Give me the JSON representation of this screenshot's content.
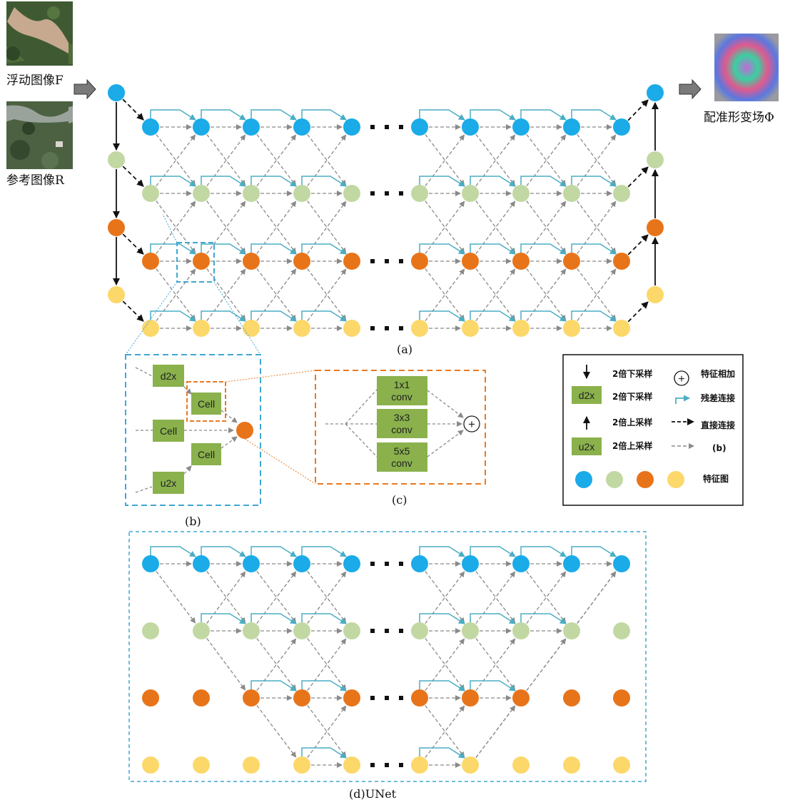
{
  "inputs": {
    "floating_label": "浮动图像F",
    "reference_label": "参考图像R",
    "output_label": "配准形变场Φ"
  },
  "captions": {
    "a": "(a)",
    "b": "(b)",
    "c": "(c)",
    "d": "(d)UNet"
  },
  "panel_b": {
    "d2x": "d2x",
    "u2x": "u2x",
    "cell": "Cell"
  },
  "panel_c": {
    "op1_line1": "1x1",
    "op1_line2": "conv",
    "op2_line1": "3x3",
    "op2_line2": "conv",
    "op3_line1": "5x5",
    "op3_line2": "conv",
    "plus": "+"
  },
  "legend": {
    "down_arrow_text": "2倍下采样",
    "d2x_box": "d2x",
    "d2x_text": "2倍下采样",
    "up_arrow_text": "2倍上采样",
    "u2x_box": "u2x",
    "u2x_text": "2倍上采样",
    "plus_symbol": "+",
    "plus_text": "特征相加",
    "residual_text": "残差连接",
    "direct_text": "直接连接",
    "gray_text": "(b)",
    "feature_text": "特征图"
  },
  "colors": {
    "level1": "#1aabe8",
    "level2": "#c2d8a3",
    "level3": "#e8741a",
    "level4": "#fcd86a",
    "residual": "#4aaec3",
    "box_green": "#8ab14c",
    "panel_blue": "#3fa7d2",
    "panel_orange": "#e87a22",
    "gray_arrow": "#8a8a8a"
  }
}
